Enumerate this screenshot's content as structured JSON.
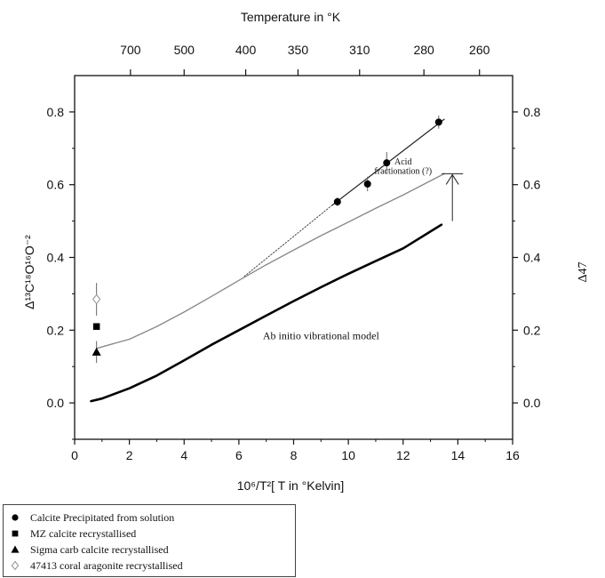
{
  "chart_data": {
    "type": "scatter",
    "top_axis_title": "Temperature in °K",
    "top_ticks": [
      {
        "label": "700",
        "x": 2.04
      },
      {
        "label": "500",
        "x": 4.0
      },
      {
        "label": "400",
        "x": 6.25
      },
      {
        "label": "350",
        "x": 8.16
      },
      {
        "label": "310",
        "x": 10.41
      },
      {
        "label": "280",
        "x": 12.76
      },
      {
        "label": "260",
        "x": 14.79
      }
    ],
    "xlabel": "10⁶/T²[ T in °Kelvin]",
    "ylabel": "Δ¹³C¹⁸O¹⁶O⁻²",
    "ylabel_right": "Δ47",
    "xlim": [
      0,
      16
    ],
    "ylim": [
      -0.1,
      0.9
    ],
    "x_ticks": [
      0,
      2,
      4,
      6,
      8,
      10,
      12,
      14,
      16
    ],
    "y_ticks": [
      0.0,
      0.2,
      0.4,
      0.6,
      0.8
    ],
    "y_tick_labels": [
      "0.0",
      "0.2",
      "0.4",
      "0.6",
      "0.8"
    ],
    "x_tick_labels": [
      "0",
      "2",
      "4",
      "6",
      "8",
      "10",
      "12",
      "14",
      "16"
    ],
    "series": [
      {
        "name": "Calcite Precipitated from solution",
        "marker": "filled-circle",
        "x": [
          9.6,
          10.7,
          11.4,
          13.3
        ],
        "y": [
          0.553,
          0.602,
          0.66,
          0.772
        ],
        "err": [
          0.012,
          0.02,
          0.03,
          0.018
        ]
      },
      {
        "name": "MZ calcite recrystallised",
        "marker": "filled-square",
        "x": [
          0.8
        ],
        "y": [
          0.21
        ],
        "err": [
          0
        ]
      },
      {
        "name": "Sigma carb calcite recrystallised",
        "marker": "filled-triangle",
        "x": [
          0.8
        ],
        "y": [
          0.14
        ],
        "err": [
          0.03
        ]
      },
      {
        "name": "47413 coral aragonite recrystallised",
        "marker": "open-diamond",
        "x": [
          0.8
        ],
        "y": [
          0.285
        ],
        "err": [
          0.045
        ]
      }
    ],
    "lines": [
      {
        "role": "fit-line",
        "style": "solid-dark",
        "x": [
          9.4,
          13.5
        ],
        "y": [
          0.543,
          0.78
        ]
      },
      {
        "role": "fit-extension",
        "style": "dotted",
        "x": [
          6.2,
          9.4
        ],
        "y": [
          0.348,
          0.543
        ]
      },
      {
        "role": "shifted-model",
        "style": "solid-gray",
        "x": [
          0.8,
          2,
          3,
          4,
          5,
          6,
          7,
          8,
          9,
          10,
          11,
          12,
          13.5
        ],
        "y": [
          0.15,
          0.175,
          0.21,
          0.25,
          0.293,
          0.337,
          0.38,
          0.42,
          0.46,
          0.497,
          0.535,
          0.572,
          0.63
        ]
      },
      {
        "role": "ab-initio-model",
        "style": "solid-thick",
        "x": [
          0.6,
          1,
          2,
          3,
          4,
          5,
          6,
          7,
          8,
          9,
          10,
          11,
          12,
          13.4
        ],
        "y": [
          0.005,
          0.012,
          0.04,
          0.075,
          0.117,
          0.16,
          0.2,
          0.24,
          0.28,
          0.318,
          0.355,
          0.39,
          0.425,
          0.49
        ]
      }
    ],
    "annotations": [
      {
        "text": "Acid",
        "x": 12.0,
        "y": 0.655
      },
      {
        "text": "fractionation (?)",
        "x": 12.0,
        "y": 0.63
      },
      {
        "text": "Ab initio vibrational model",
        "x": 9.0,
        "y": 0.175
      }
    ],
    "arrow": {
      "x": 13.8,
      "y_from": 0.5,
      "y_to": 0.63
    },
    "legend_position": "below-left"
  }
}
